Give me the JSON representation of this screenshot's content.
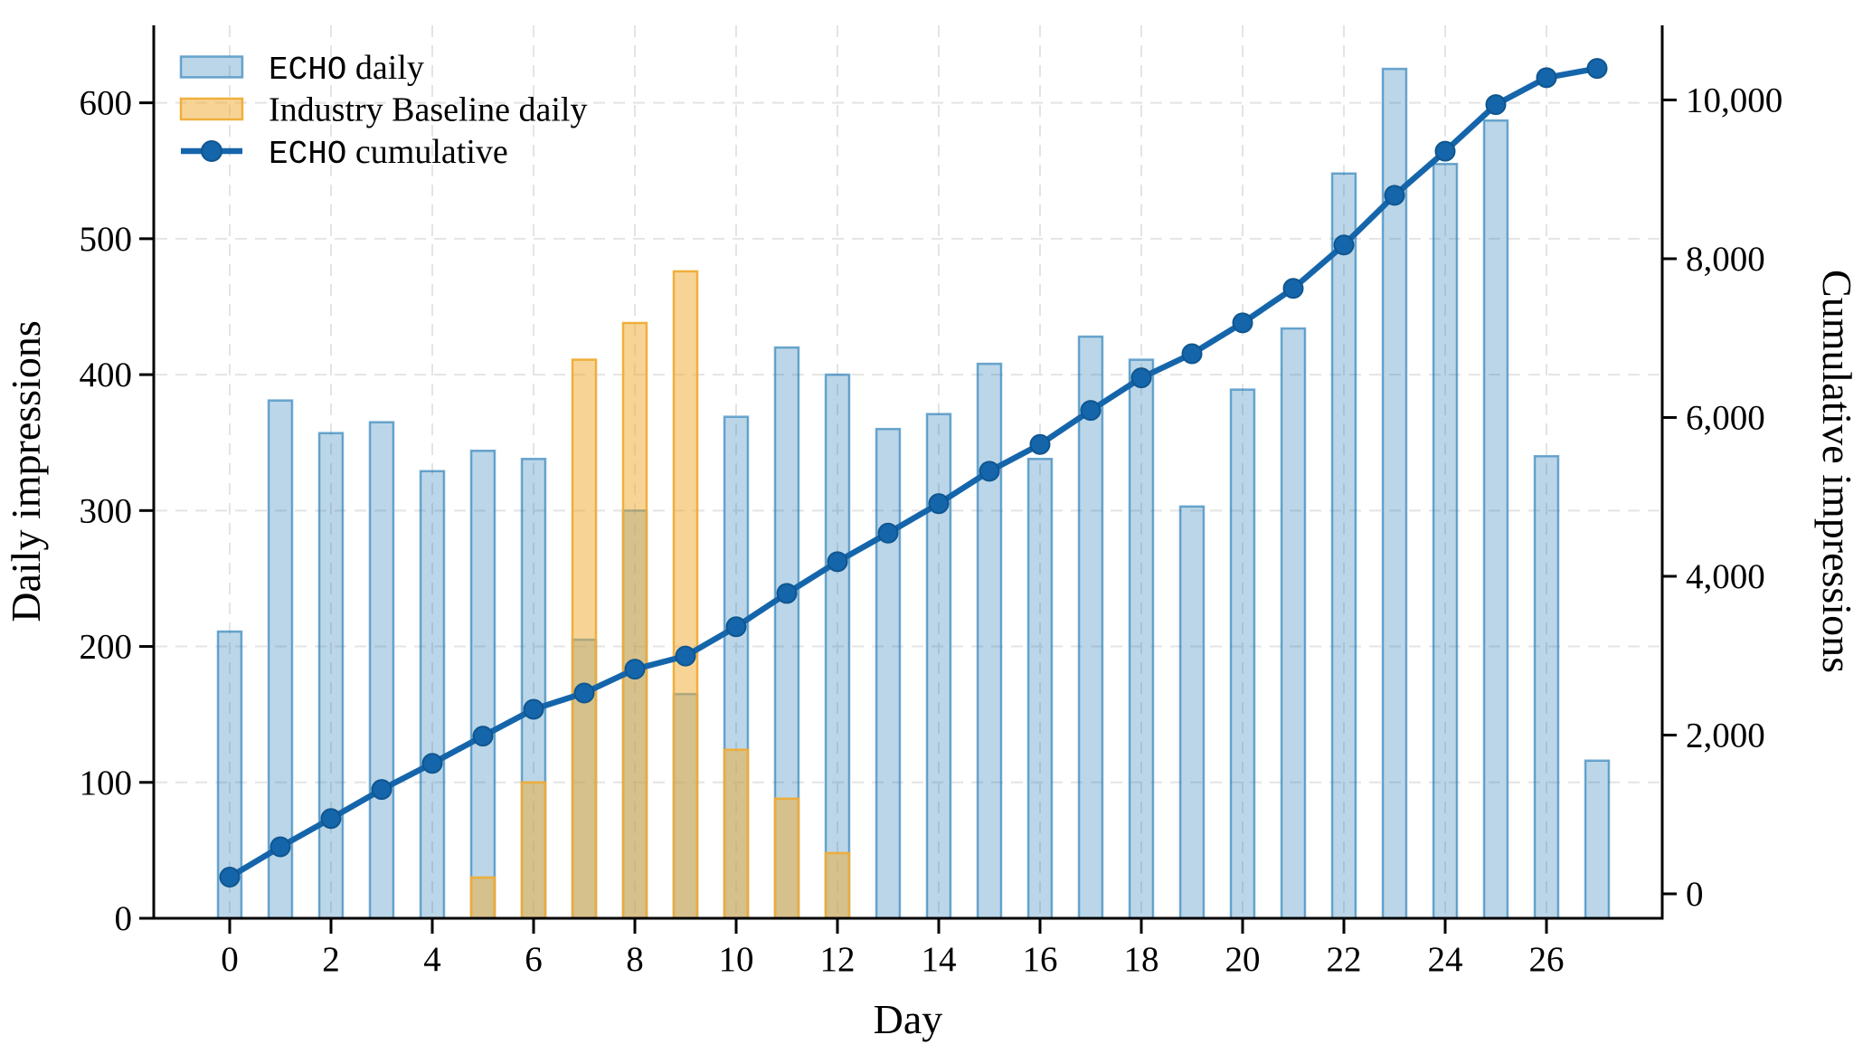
{
  "chart_data": {
    "type": "combo",
    "xlabel": "Day",
    "ylabel_left": "Daily impressions",
    "ylabel_right": "Cumulative impressions",
    "days": [
      0,
      1,
      2,
      3,
      4,
      5,
      6,
      7,
      8,
      9,
      10,
      11,
      12,
      13,
      14,
      15,
      16,
      17,
      18,
      19,
      20,
      21,
      22,
      23,
      24,
      25,
      26,
      27
    ],
    "series": [
      {
        "name": "ECHO daily",
        "type": "bar",
        "axis": "left",
        "values": [
          211,
          381,
          357,
          365,
          329,
          344,
          338,
          205,
          300,
          165,
          369,
          420,
          400,
          360,
          371,
          408,
          338,
          428,
          411,
          303,
          389,
          434,
          548,
          625,
          555,
          587,
          340,
          116
        ]
      },
      {
        "name": "Industry Baseline daily",
        "type": "bar",
        "axis": "left",
        "values": [
          null,
          null,
          null,
          null,
          null,
          30,
          100,
          411,
          438,
          476,
          124,
          88,
          48,
          null,
          null,
          null,
          null,
          null,
          null,
          null,
          null,
          null,
          null,
          null,
          null,
          null,
          null,
          null
        ]
      },
      {
        "name": "ECHO cumulative",
        "type": "line",
        "axis": "right",
        "values": [
          211,
          592,
          949,
          1314,
          1643,
          1987,
          2325,
          2530,
          2830,
          2995,
          3364,
          3784,
          4184,
          4544,
          4915,
          5323,
          5661,
          6089,
          6500,
          6803,
          7192,
          7626,
          8174,
          8799,
          9354,
          9941,
          10281,
          10397
        ]
      }
    ],
    "left_axis": {
      "ticks": [
        0,
        100,
        200,
        300,
        400,
        500,
        600
      ],
      "tick_labels": [
        "0",
        "100",
        "200",
        "300",
        "400",
        "500",
        "600"
      ],
      "range": [
        0,
        657
      ]
    },
    "right_axis": {
      "ticks": [
        0,
        2000,
        4000,
        6000,
        8000,
        10000
      ],
      "tick_labels": [
        "0",
        "2,000",
        "4,000",
        "6,000",
        "8,000",
        "10,000"
      ],
      "range": [
        -308,
        10940
      ]
    },
    "x_axis": {
      "tick_values": [
        0,
        2,
        4,
        6,
        8,
        10,
        12,
        14,
        16,
        18,
        20,
        22,
        24,
        26
      ],
      "tick_labels": [
        "0",
        "2",
        "4",
        "6",
        "8",
        "10",
        "12",
        "14",
        "16",
        "18",
        "20",
        "22",
        "24",
        "26"
      ]
    },
    "legend": {
      "position": "upper-left",
      "entries": [
        "ECHO daily",
        "Industry Baseline daily",
        "ECHO cumulative"
      ]
    },
    "grid": true,
    "colors": {
      "echo_bar": "#1f77b4",
      "baseline_bar": "#efac35",
      "cumulative_line": "#1565ab",
      "cumulative_marker_edge": "#0f568f",
      "gridline": "#e4e4e4",
      "spine": "#000000"
    }
  }
}
